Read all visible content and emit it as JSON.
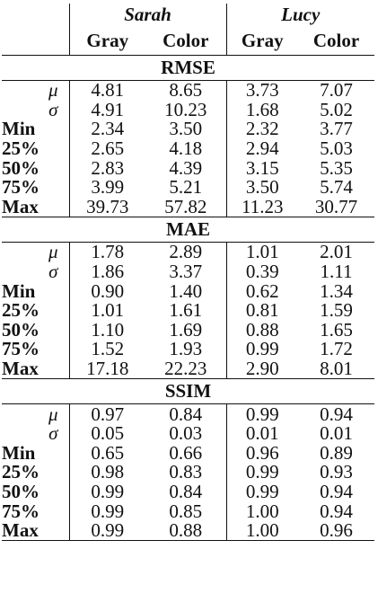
{
  "header": {
    "persons": [
      "Sarah",
      "Lucy"
    ],
    "modes": [
      "Gray",
      "Color",
      "Gray",
      "Color"
    ]
  },
  "sections": [
    {
      "title": "RMSE",
      "rows": [
        {
          "label": "μ",
          "values": [
            "4.81",
            "8.65",
            "3.73",
            "7.07"
          ]
        },
        {
          "label": "σ",
          "values": [
            "4.91",
            "10.23",
            "1.68",
            "5.02"
          ]
        },
        {
          "label": "Min",
          "values": [
            "2.34",
            "3.50",
            "2.32",
            "3.77"
          ]
        },
        {
          "label": "25%",
          "values": [
            "2.65",
            "4.18",
            "2.94",
            "5.03"
          ]
        },
        {
          "label": "50%",
          "values": [
            "2.83",
            "4.39",
            "3.15",
            "5.35"
          ]
        },
        {
          "label": "75%",
          "values": [
            "3.99",
            "5.21",
            "3.50",
            "5.74"
          ]
        },
        {
          "label": "Max",
          "values": [
            "39.73",
            "57.82",
            "11.23",
            "30.77"
          ]
        }
      ]
    },
    {
      "title": "MAE",
      "rows": [
        {
          "label": "μ",
          "values": [
            "1.78",
            "2.89",
            "1.01",
            "2.01"
          ]
        },
        {
          "label": "σ",
          "values": [
            "1.86",
            "3.37",
            "0.39",
            "1.11"
          ]
        },
        {
          "label": "Min",
          "values": [
            "0.90",
            "1.40",
            "0.62",
            "1.34"
          ]
        },
        {
          "label": "25%",
          "values": [
            "1.01",
            "1.61",
            "0.81",
            "1.59"
          ]
        },
        {
          "label": "50%",
          "values": [
            "1.10",
            "1.69",
            "0.88",
            "1.65"
          ]
        },
        {
          "label": "75%",
          "values": [
            "1.52",
            "1.93",
            "0.99",
            "1.72"
          ]
        },
        {
          "label": "Max",
          "values": [
            "17.18",
            "22.23",
            "2.90",
            "8.01"
          ]
        }
      ]
    },
    {
      "title": "SSIM",
      "rows": [
        {
          "label": "μ",
          "values": [
            "0.97",
            "0.84",
            "0.99",
            "0.94"
          ]
        },
        {
          "label": "σ",
          "values": [
            "0.05",
            "0.03",
            "0.01",
            "0.01"
          ]
        },
        {
          "label": "Min",
          "values": [
            "0.65",
            "0.66",
            "0.96",
            "0.89"
          ]
        },
        {
          "label": "25%",
          "values": [
            "0.98",
            "0.83",
            "0.99",
            "0.93"
          ]
        },
        {
          "label": "50%",
          "values": [
            "0.99",
            "0.84",
            "0.99",
            "0.94"
          ]
        },
        {
          "label": "75%",
          "values": [
            "0.99",
            "0.85",
            "1.00",
            "0.94"
          ]
        },
        {
          "label": "Max",
          "values": [
            "0.99",
            "0.88",
            "1.00",
            "0.96"
          ]
        }
      ]
    }
  ]
}
